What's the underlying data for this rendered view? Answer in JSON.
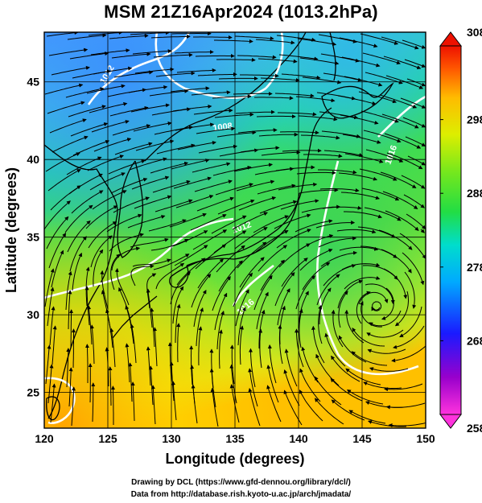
{
  "title": "MSM 21Z16Apr2024 (1013.2hPa)",
  "x_axis": {
    "label": "Longitude (degrees)",
    "ticks": [
      "120",
      "125",
      "130",
      "135",
      "140",
      "145",
      "150"
    ]
  },
  "y_axis": {
    "label": "Latitude  (degrees)",
    "ticks": [
      "25",
      "30",
      "35",
      "40",
      "45"
    ]
  },
  "colorbar": {
    "ticks": [
      "258",
      "268",
      "278",
      "288",
      "298",
      "308"
    ],
    "colors": [
      "#ff33dd",
      "#9900cc",
      "#1a1aff",
      "#00ccff",
      "#00e0a0",
      "#33dd33",
      "#99ee11",
      "#ffee00",
      "#ffaa00",
      "#ff5500",
      "#ee1100"
    ]
  },
  "contours": {
    "labels": [
      "1012",
      "1008",
      "1012",
      "1016",
      "1016"
    ]
  },
  "credits": {
    "line1": "Drawing by DCL (https://www.gfd-dennou.org/library/dcl/)",
    "line2": "Data from http://database.rish.kyoto-u.ac.jp/arch/jmadata/"
  },
  "colors": {
    "contour": "#ffffff",
    "coast": "#000000",
    "cold": "#4aa6ff",
    "cool": "#22d3c0",
    "mild": "#4ce04a",
    "warm": "#b6ee2a",
    "hot": "#ffb000"
  }
}
